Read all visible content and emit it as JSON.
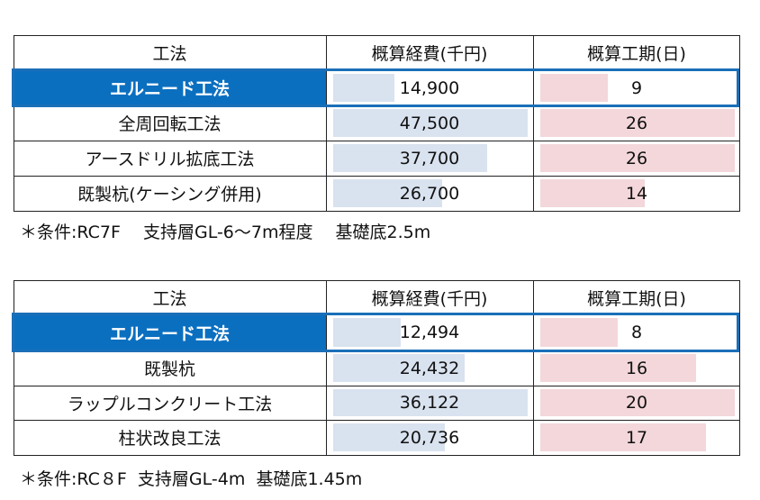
{
  "table1": {
    "headers": [
      "工法",
      "概算経費(千円)",
      "概算工期(日)"
    ],
    "rows": [
      {
        "method": "エルニード工法",
        "cost": "14,900",
        "cost_value": 14900,
        "days": "9",
        "days_value": 9,
        "highlight": true
      },
      {
        "method": "全周回転工法",
        "cost": "47,500",
        "cost_value": 47500,
        "days": "26",
        "days_value": 26,
        "highlight": false
      },
      {
        "method": "アースドリル拡底工法",
        "cost": "37,700",
        "cost_value": 37700,
        "days": "26",
        "days_value": 26,
        "highlight": false
      },
      {
        "method": "既製杭(ケーシング併用)",
        "cost": "26,700",
        "cost_value": 26700,
        "days": "14",
        "days_value": 14,
        "highlight": false
      }
    ],
    "note": "＊条件:RC7F　 支持層GL-6～7m程度　 基礎底2.5m"
  },
  "table2": {
    "headers": [
      "工法",
      "概算経費(千円)",
      "概算工期(日)"
    ],
    "rows": [
      {
        "method": "エルニード工法",
        "cost": "12,494",
        "cost_value": 12494,
        "days": "8",
        "days_value": 8,
        "highlight": true
      },
      {
        "method": "既製杭",
        "cost": "24,432",
        "cost_value": 24432,
        "days": "16",
        "days_value": 16,
        "highlight": false
      },
      {
        "method": "ラップルコンクリート工法",
        "cost": "36,122",
        "cost_value": 36122,
        "days": "20",
        "days_value": 20,
        "highlight": false
      },
      {
        "method": "柱状改良工法",
        "cost": "20,736",
        "cost_value": 20736,
        "days": "17",
        "days_value": 17,
        "highlight": false
      }
    ],
    "note": "＊条件:RC８F  支持層GL-4m  基礎底1.45m"
  },
  "colors": {
    "highlight_fill": "#0b6fc0",
    "highlight_border": "#1a6fb8",
    "cost_bar": "#d9e2ef",
    "days_bar": "#f3d7db"
  }
}
